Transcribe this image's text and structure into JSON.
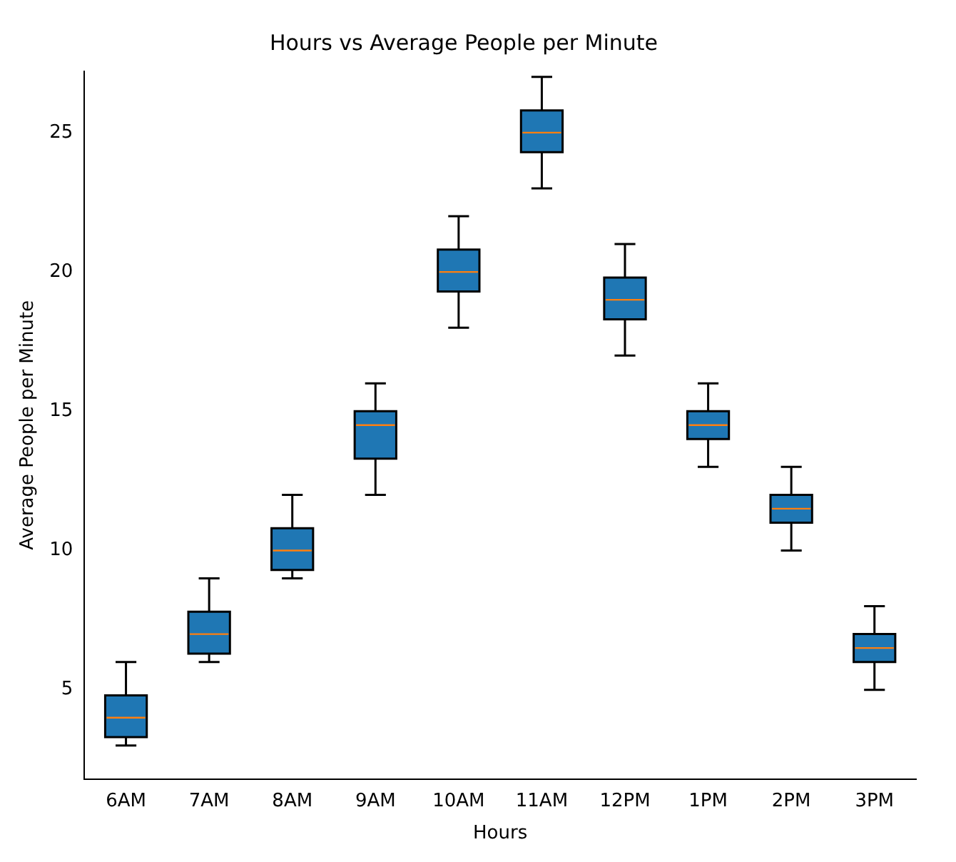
{
  "chart_data": {
    "type": "box",
    "title": "Hours vs Average People per Minute",
    "xlabel": "Hours",
    "ylabel": "Average People per Minute",
    "categories": [
      "6AM",
      "7AM",
      "8AM",
      "9AM",
      "10AM",
      "11AM",
      "12PM",
      "1PM",
      "2PM",
      "3PM"
    ],
    "series": [
      {
        "color": "#1f77b4",
        "boxes": [
          {
            "low": 3,
            "q1": 3.3,
            "median": 4,
            "q3": 4.8,
            "high": 6
          },
          {
            "low": 6,
            "q1": 6.3,
            "median": 7,
            "q3": 7.8,
            "high": 9
          },
          {
            "low": 9,
            "q1": 9.3,
            "median": 10,
            "q3": 10.8,
            "high": 12
          },
          {
            "low": 12,
            "q1": 13.3,
            "median": 14.5,
            "q3": 15,
            "high": 16
          },
          {
            "low": 18,
            "q1": 19.3,
            "median": 20,
            "q3": 20.8,
            "high": 22
          },
          {
            "low": 23,
            "q1": 24.3,
            "median": 25,
            "q3": 25.8,
            "high": 27
          },
          {
            "low": 17,
            "q1": 18.3,
            "median": 19,
            "q3": 19.8,
            "high": 21
          },
          {
            "low": 13,
            "q1": 14,
            "median": 14.5,
            "q3": 15,
            "high": 16
          },
          {
            "low": 10,
            "q1": 11,
            "median": 11.5,
            "q3": 12,
            "high": 13
          },
          {
            "low": 5,
            "q1": 6,
            "median": 6.5,
            "q3": 7,
            "high": 8
          }
        ]
      }
    ],
    "ylim": [
      1.8,
      27.2
    ],
    "yticks": [
      5,
      10,
      15,
      20,
      25
    ],
    "grid": false,
    "legend": false
  }
}
